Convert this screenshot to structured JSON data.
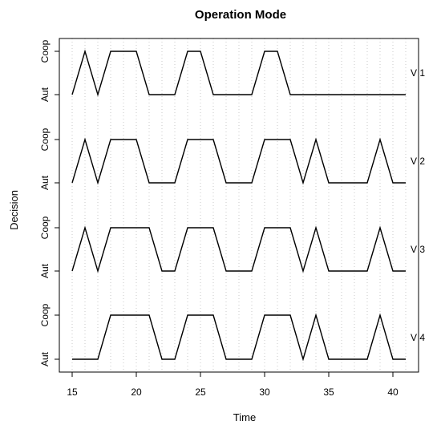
{
  "chart_data": {
    "type": "line",
    "title": "Operation Mode",
    "xlabel": "Time",
    "ylabel": "Decision",
    "xlim": [
      14.5,
      41.5
    ],
    "x_ticks": [
      15,
      20,
      25,
      30,
      35,
      40
    ],
    "y_levels": [
      "Aut",
      "Coop"
    ],
    "grid": "vertical dotted at every integer",
    "x": [
      15,
      16,
      17,
      18,
      19,
      20,
      21,
      22,
      23,
      24,
      25,
      26,
      27,
      28,
      29,
      30,
      31,
      32,
      33,
      34,
      35,
      36,
      37,
      38,
      39,
      40,
      41
    ],
    "series": [
      {
        "name": "V 1",
        "values": [
          "Aut",
          "Coop",
          "Aut",
          "Coop",
          "Coop",
          "Coop",
          "Aut",
          "Aut",
          "Aut",
          "Coop",
          "Coop",
          "Aut",
          "Aut",
          "Aut",
          "Aut",
          "Coop",
          "Coop",
          "Aut",
          "Aut",
          "Aut",
          "Aut",
          "Aut",
          "Aut",
          "Aut",
          "Aut",
          "Aut",
          "Aut"
        ]
      },
      {
        "name": "V 2",
        "values": [
          "Aut",
          "Coop",
          "Aut",
          "Coop",
          "Coop",
          "Coop",
          "Aut",
          "Aut",
          "Aut",
          "Coop",
          "Coop",
          "Coop",
          "Aut",
          "Aut",
          "Aut",
          "Coop",
          "Coop",
          "Coop",
          "Aut",
          "Coop",
          "Aut",
          "Aut",
          "Aut",
          "Aut",
          "Coop",
          "Aut",
          "Aut"
        ]
      },
      {
        "name": "V 3",
        "values": [
          "Aut",
          "Coop",
          "Aut",
          "Coop",
          "Coop",
          "Coop",
          "Coop",
          "Aut",
          "Aut",
          "Coop",
          "Coop",
          "Coop",
          "Aut",
          "Aut",
          "Aut",
          "Coop",
          "Coop",
          "Coop",
          "Aut",
          "Coop",
          "Aut",
          "Aut",
          "Aut",
          "Aut",
          "Coop",
          "Aut",
          "Aut"
        ]
      },
      {
        "name": "V 4",
        "values": [
          "Aut",
          "Aut",
          "Aut",
          "Coop",
          "Coop",
          "Coop",
          "Coop",
          "Aut",
          "Aut",
          "Coop",
          "Coop",
          "Coop",
          "Aut",
          "Aut",
          "Aut",
          "Coop",
          "Coop",
          "Coop",
          "Aut",
          "Coop",
          "Aut",
          "Aut",
          "Aut",
          "Aut",
          "Coop",
          "Aut",
          "Aut"
        ]
      }
    ]
  }
}
